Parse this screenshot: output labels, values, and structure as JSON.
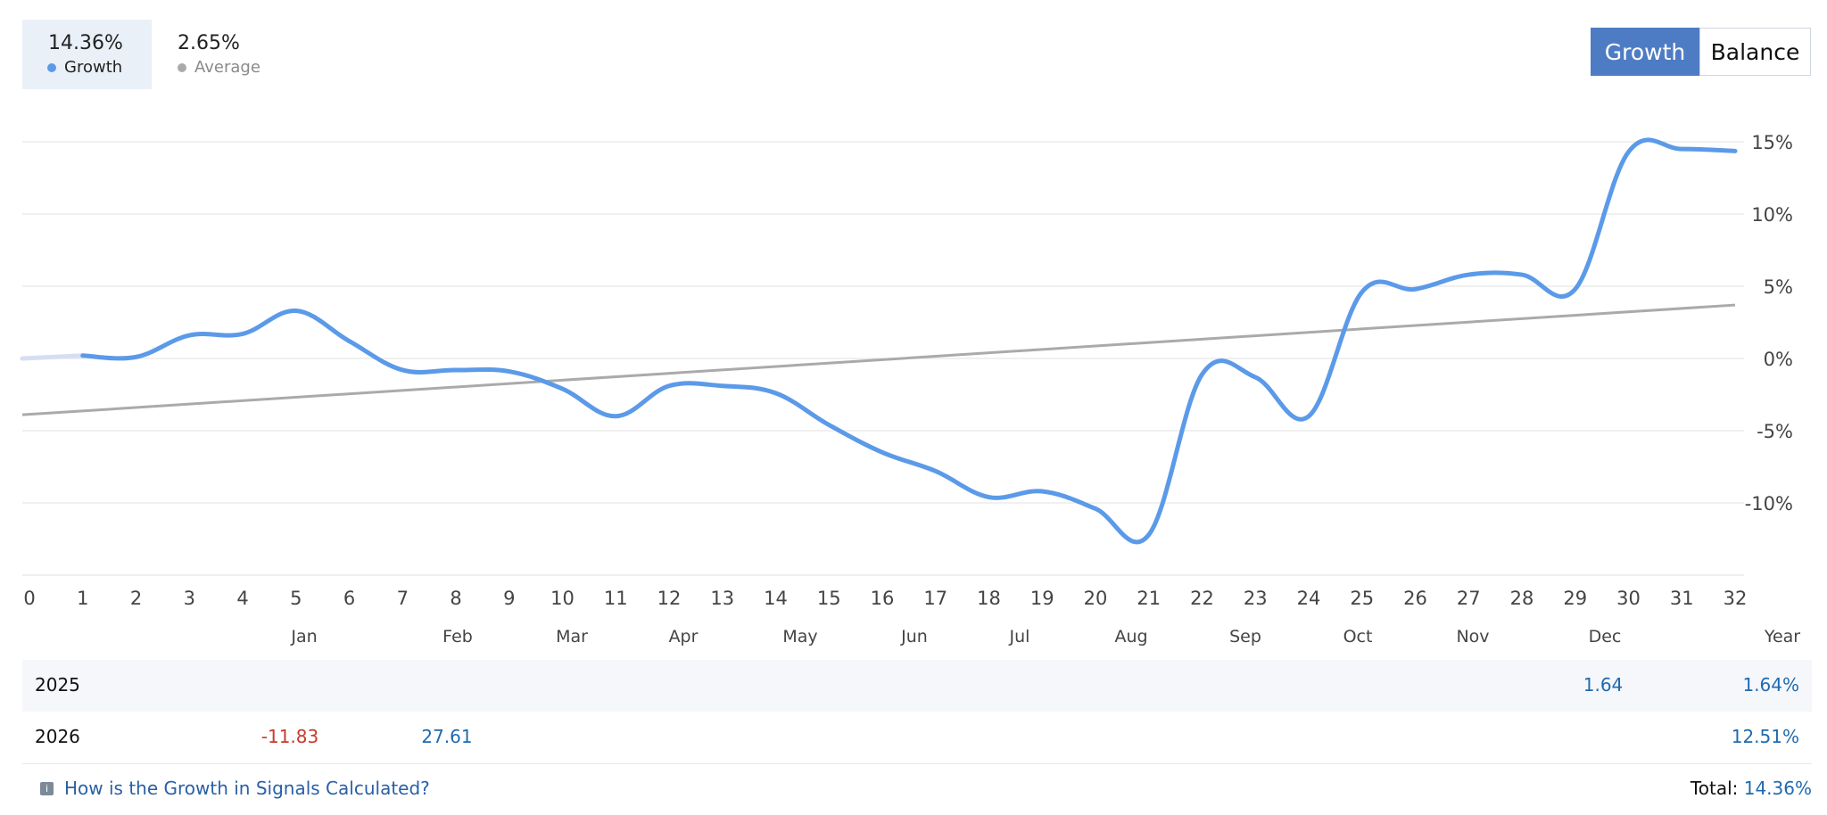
{
  "legend": {
    "growth": {
      "value": "14.36%",
      "label": "Growth"
    },
    "average": {
      "value": "2.65%",
      "label": "Average"
    }
  },
  "toggle": {
    "growth": "Growth",
    "balance": "Balance"
  },
  "colors": {
    "growth_line": "#5b9ae8",
    "average_line": "#aaaaaa",
    "first_segment": "#d6def2",
    "grid": "#e8e8e8",
    "active_button": "#4e7cc4"
  },
  "chart_data": {
    "type": "line",
    "x_ticks": [
      0,
      1,
      2,
      3,
      4,
      5,
      6,
      7,
      8,
      9,
      10,
      11,
      12,
      13,
      14,
      15,
      16,
      17,
      18,
      19,
      20,
      21,
      22,
      23,
      24,
      25,
      26,
      27,
      28,
      29,
      30,
      31,
      32
    ],
    "xlim": [
      0,
      32
    ],
    "ylim": [
      -15,
      15
    ],
    "y_ticks": [
      15,
      10,
      5,
      0,
      -5,
      -10
    ],
    "y_tick_labels": [
      "15%",
      "10%",
      "5%",
      "0%",
      "-5%",
      "-10%"
    ],
    "grid": "horizontal",
    "series": [
      {
        "name": "Growth",
        "x": [
          0,
          1,
          2,
          3,
          4,
          5,
          6,
          7,
          8,
          9,
          10,
          11,
          12,
          13,
          14,
          15,
          16,
          17,
          18,
          19,
          20,
          21,
          22,
          23,
          24,
          25,
          26,
          27,
          28,
          29,
          30,
          31,
          32
        ],
        "y": [
          0.0,
          0.2,
          0.1,
          1.6,
          1.7,
          3.3,
          1.2,
          -0.8,
          -0.8,
          -0.9,
          -2.1,
          -4.0,
          -1.9,
          -1.9,
          -2.4,
          -4.6,
          -6.5,
          -7.8,
          -9.6,
          -9.2,
          -10.4,
          -12.2,
          -1.1,
          -1.3,
          -4.0,
          4.6,
          4.8,
          5.8,
          5.8,
          4.8,
          14.3,
          14.5,
          14.36
        ]
      },
      {
        "name": "Average",
        "x": [
          0,
          32
        ],
        "y": [
          -3.9,
          3.7
        ]
      }
    ]
  },
  "months": [
    "Jan",
    "Feb",
    "Mar",
    "Apr",
    "May",
    "Jun",
    "Jul",
    "Aug",
    "Sep",
    "Oct",
    "Nov",
    "Dec",
    "Year"
  ],
  "table": {
    "rows": [
      {
        "year": "2025",
        "cells": [
          {
            "col": "Dec",
            "value": "1.64",
            "sign": "pos"
          }
        ],
        "year_total": "1.64%"
      },
      {
        "year": "2026",
        "cells": [
          {
            "col": "Jan",
            "value": "-11.83",
            "sign": "neg"
          },
          {
            "col": "Feb",
            "value": "27.61",
            "sign": "pos"
          }
        ],
        "year_total": "12.51%"
      }
    ]
  },
  "footer": {
    "link_text": "How is the Growth in Signals Calculated?",
    "total_label": "Total:",
    "total_value": "14.36%"
  }
}
